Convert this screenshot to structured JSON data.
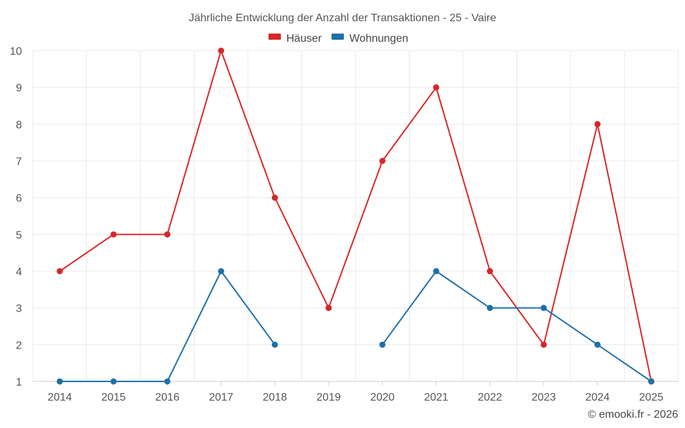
{
  "chart_data": {
    "type": "line",
    "title": "Jährliche Entwicklung der Anzahl der Transaktionen - 25 - Vaire",
    "x": [
      "2014",
      "2015",
      "2016",
      "2017",
      "2018",
      "2019",
      "2020",
      "2021",
      "2022",
      "2023",
      "2024",
      "2025"
    ],
    "series": [
      {
        "name": "Häuser",
        "color": "#d62728",
        "values": [
          4,
          5,
          5,
          10,
          6,
          3,
          7,
          9,
          4,
          2,
          8,
          1
        ]
      },
      {
        "name": "Wohnungen",
        "color": "#1f6fa8",
        "values": [
          1,
          1,
          1,
          4,
          2,
          null,
          2,
          4,
          3,
          3,
          2,
          1
        ]
      }
    ],
    "yticks": [
      "1",
      "2",
      "3",
      "4",
      "5",
      "6",
      "7",
      "8",
      "9",
      "10"
    ],
    "ylim": [
      1,
      10
    ],
    "grid": true,
    "legend_position": "top-center"
  },
  "credit": "© emooki.fr - 2026"
}
